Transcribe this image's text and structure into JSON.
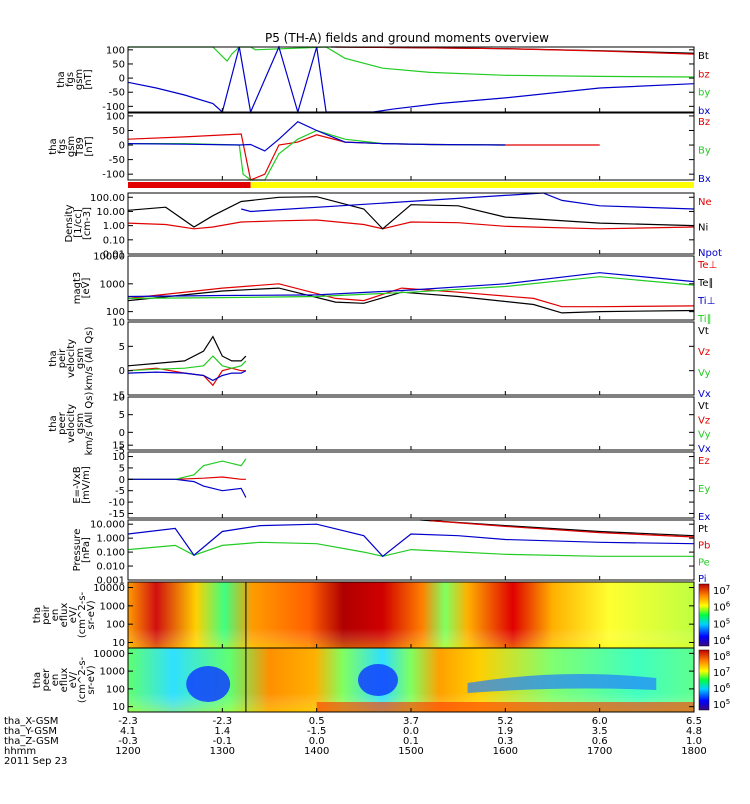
{
  "title": "P5 (TH-A) fields and ground moments overview",
  "colors": {
    "black": "#000000",
    "red": "#e00000",
    "green": "#22cc22",
    "blue": "#0000cc",
    "yellow": "#ffff00"
  },
  "chart_data": [
    {
      "type": "line",
      "ylabel": [
        "tha",
        "fgs",
        "gsm",
        "[nT]"
      ],
      "ylim": [
        -120,
        110
      ],
      "yticks": [
        "100",
        "50",
        "0",
        "-50",
        "-100"
      ],
      "ytick_values": [
        100,
        50,
        0,
        -50,
        -100
      ],
      "series": [
        {
          "name": "Bt",
          "color": "#000000",
          "x": [
            1415,
            1500,
            1600,
            1700,
            1800
          ],
          "y": [
            110,
            108,
            104,
            97,
            88
          ]
        },
        {
          "name": "bz",
          "color": "#e00000",
          "x": [
            1420,
            1500,
            1600,
            1700,
            1800
          ],
          "y": [
            110,
            108,
            104,
            96,
            85
          ]
        },
        {
          "name": "by",
          "color": "#22cc22",
          "x": [
            1200,
            1290,
            1305,
            1310,
            1318,
            1330,
            1335,
            1410,
            1430,
            1470,
            1520,
            1600,
            1700,
            1800
          ],
          "y": [
            110,
            110,
            60,
            85,
            110,
            110,
            100,
            110,
            70,
            35,
            20,
            10,
            6,
            4
          ]
        },
        {
          "name": "bx",
          "color": "#0000cc",
          "x": [
            1200,
            1230,
            1260,
            1290,
            1300,
            1318,
            1330,
            1360,
            1380,
            1400,
            1410,
            1430,
            1460,
            1480,
            1530,
            1600,
            1700,
            1800
          ],
          "y": [
            -15,
            -35,
            -60,
            -90,
            -120,
            110,
            -120,
            110,
            -120,
            110,
            -120,
            -120,
            -120,
            -110,
            -90,
            -70,
            -35,
            -20
          ]
        }
      ]
    },
    {
      "type": "line",
      "ylabel": [
        "tha",
        "fgs",
        "gsm",
        "T89",
        "[nT]"
      ],
      "ylim": [
        -120,
        110
      ],
      "yticks": [
        "100",
        "50",
        "0",
        "-50",
        "-100"
      ],
      "ytick_values": [
        100,
        50,
        0,
        -50,
        -100
      ],
      "series": [
        {
          "name": "Bz",
          "color": "#e00000",
          "x": [
            1200,
            1260,
            1320,
            1330,
            1345,
            1360,
            1380,
            1400,
            1430,
            1470,
            1520,
            1600,
            1700
          ],
          "y": [
            20,
            28,
            38,
            -120,
            -100,
            0,
            10,
            35,
            10,
            5,
            2,
            0,
            0
          ]
        },
        {
          "name": "By",
          "color": "#22cc22",
          "x": [
            1200,
            1260,
            1318,
            1322,
            1330,
            1345,
            1360,
            1380,
            1400,
            1430,
            1470,
            1520,
            1600
          ],
          "y": [
            5,
            5,
            0,
            -100,
            -120,
            -120,
            -30,
            20,
            50,
            20,
            5,
            2,
            0
          ]
        },
        {
          "name": "Bx",
          "color": "#0000cc",
          "x": [
            1200,
            1260,
            1318,
            1330,
            1345,
            1360,
            1380,
            1400,
            1430,
            1470,
            1520,
            1600
          ],
          "y": [
            5,
            3,
            0,
            2,
            -20,
            20,
            80,
            50,
            10,
            5,
            2,
            0
          ]
        }
      ]
    },
    {
      "type": "line",
      "ylabel": [
        "Density",
        "[1/cc]",
        "[cm-3]"
      ],
      "yscale": "log",
      "ylim": [
        0.01,
        200
      ],
      "yticks": [
        "100.00",
        "10.00",
        "1.00",
        "0.10",
        "0.01"
      ],
      "ytick_values": [
        100,
        10,
        1,
        0.1,
        0.01
      ],
      "series": [
        {
          "name": "Ne",
          "color": "#e00000",
          "x": [
            1200,
            1240,
            1270,
            1290,
            1320,
            1360,
            1400,
            1450,
            1470,
            1500,
            1550,
            1600,
            1700,
            1800
          ],
          "y": [
            1.5,
            1.2,
            0.6,
            0.8,
            1.8,
            2.2,
            2.5,
            1.2,
            0.6,
            1.8,
            1.6,
            0.9,
            0.6,
            0.8
          ]
        },
        {
          "name": "Ni",
          "color": "#000000",
          "x": [
            1200,
            1240,
            1270,
            1290,
            1320,
            1360,
            1400,
            1450,
            1470,
            1500,
            1550,
            1600,
            1700,
            1800
          ],
          "y": [
            12,
            20,
            0.8,
            5,
            50,
            100,
            110,
            15,
            0.6,
            30,
            25,
            4,
            1.5,
            1.0
          ]
        },
        {
          "name": "Npot",
          "color": "#0000cc",
          "x": [
            1320,
            1330,
            1640,
            1660,
            1700,
            1800
          ],
          "y": [
            15,
            10,
            200,
            60,
            25,
            15
          ]
        }
      ]
    },
    {
      "type": "line",
      "ylabel": [
        "magt3",
        "[eV]"
      ],
      "yscale": "log",
      "ylim": [
        50,
        10000
      ],
      "yticks": [
        "10000",
        "1000",
        "100"
      ],
      "ytick_values": [
        10000,
        1000,
        100
      ],
      "series": [
        {
          "name": "Te⊥",
          "color": "#e00000",
          "x": [
            1200,
            1300,
            1360,
            1420,
            1450,
            1490,
            1550,
            1630,
            1660,
            1700,
            1800
          ],
          "y": [
            300,
            700,
            1000,
            300,
            250,
            700,
            500,
            300,
            150,
            150,
            160
          ]
        },
        {
          "name": "Te∥",
          "color": "#000000",
          "x": [
            1200,
            1300,
            1360,
            1420,
            1450,
            1490,
            1550,
            1630,
            1660,
            1700,
            1800
          ],
          "y": [
            250,
            550,
            700,
            220,
            200,
            500,
            350,
            180,
            90,
            100,
            110
          ]
        },
        {
          "name": "Ti⊥",
          "color": "#0000cc",
          "x": [
            1200,
            1300,
            1400,
            1500,
            1600,
            1700,
            1800
          ],
          "y": [
            350,
            380,
            400,
            600,
            1000,
            2500,
            1200
          ]
        },
        {
          "name": "Ti∥",
          "color": "#22cc22",
          "x": [
            1200,
            1300,
            1400,
            1500,
            1600,
            1700,
            1800
          ],
          "y": [
            300,
            320,
            350,
            500,
            800,
            1800,
            900
          ]
        }
      ]
    },
    {
      "type": "line",
      "ylabel": [
        "tha",
        "peir",
        "velocity",
        "gsm",
        "km/s (All Qs)"
      ],
      "ylim": [
        -5,
        10
      ],
      "yticks": [
        "10",
        "5",
        "0",
        "-5"
      ],
      "ytick_values": [
        10,
        5,
        0,
        -5
      ],
      "series": [
        {
          "name": "Vt",
          "color": "#000000",
          "x": [
            1200,
            1230,
            1260,
            1280,
            1290,
            1300,
            1310,
            1320,
            1325
          ],
          "y": [
            1,
            1.5,
            2,
            4,
            7,
            3,
            2,
            2,
            3
          ]
        },
        {
          "name": "Vz",
          "color": "#e00000",
          "x": [
            1200,
            1230,
            1260,
            1280,
            1290,
            1300,
            1310,
            1320,
            1325
          ],
          "y": [
            0,
            0.5,
            -0.5,
            -1,
            -3,
            0,
            0.5,
            0,
            0
          ]
        },
        {
          "name": "Vy",
          "color": "#22cc22",
          "x": [
            1200,
            1230,
            1260,
            1280,
            1290,
            1300,
            1310,
            1320,
            1325
          ],
          "y": [
            0,
            0.3,
            0.5,
            1,
            3,
            1,
            0.5,
            1,
            2
          ]
        },
        {
          "name": "Vx",
          "color": "#0000cc",
          "x": [
            1200,
            1230,
            1260,
            1280,
            1290,
            1300,
            1310,
            1320,
            1325
          ],
          "y": [
            -0.5,
            -0.3,
            -0.5,
            -1,
            -2,
            -1,
            -0.5,
            -0.5,
            0
          ]
        }
      ]
    },
    {
      "type": "line",
      "ylabel": [
        "tha",
        "peer",
        "velocity",
        "gsm",
        "km/s (All Qs)"
      ],
      "ylim": [
        -5,
        10
      ],
      "yticks": [
        "10",
        "5",
        "0",
        "-5"
      ],
      "ytick_values": [
        10,
        5,
        0,
        -5
      ],
      "series": [
        {
          "name": "Vt",
          "color": "#000000",
          "x": [],
          "y": []
        },
        {
          "name": "Vz",
          "color": "#e00000",
          "x": [],
          "y": []
        },
        {
          "name": "Vy",
          "color": "#22cc22",
          "x": [],
          "y": []
        },
        {
          "name": "Vx",
          "color": "#0000cc",
          "x": [],
          "y": []
        }
      ]
    },
    {
      "type": "line",
      "ylabel": [
        "E=-VxB",
        "[mV/m]"
      ],
      "ylim": [
        -17,
        12
      ],
      "yticks": [
        "15",
        "10",
        "5",
        "0",
        "-5",
        "-10",
        "-15"
      ],
      "ytick_values": [
        15,
        10,
        5,
        0,
        -5,
        -10,
        -15
      ],
      "series": [
        {
          "name": "Ez",
          "color": "#e00000",
          "x": [
            1200,
            1250,
            1280,
            1300,
            1320,
            1325
          ],
          "y": [
            0,
            0,
            0.5,
            1,
            0,
            0
          ]
        },
        {
          "name": "Ey",
          "color": "#22cc22",
          "x": [
            1200,
            1250,
            1270,
            1280,
            1300,
            1320,
            1325
          ],
          "y": [
            0,
            0,
            2,
            6,
            8,
            6,
            9
          ]
        },
        {
          "name": "Ex",
          "color": "#0000cc",
          "x": [
            1200,
            1250,
            1270,
            1280,
            1300,
            1320,
            1325
          ],
          "y": [
            0,
            0,
            -1,
            -3,
            -5,
            -4,
            -8
          ]
        }
      ]
    },
    {
      "type": "line",
      "ylabel": [
        "Pressure",
        "[nPa]"
      ],
      "yscale": "log",
      "ylim": [
        0.001,
        20
      ],
      "yticks": [
        "10.000",
        "1.000",
        "0.100",
        "0.010",
        "0.001"
      ],
      "ytick_values": [
        10,
        1,
        0.1,
        0.01,
        0.001
      ],
      "series": [
        {
          "name": "Pt",
          "color": "#000000",
          "x": [
            1510,
            1600,
            1700,
            1800
          ],
          "y": [
            20,
            8,
            3,
            1.5
          ]
        },
        {
          "name": "Pb",
          "color": "#e00000",
          "x": [
            1520,
            1600,
            1700,
            1800
          ],
          "y": [
            18,
            7,
            2.5,
            1.2
          ]
        },
        {
          "name": "Pe",
          "color": "#22cc22",
          "x": [
            1200,
            1250,
            1270,
            1300,
            1340,
            1400,
            1450,
            1470,
            1500,
            1600,
            1700,
            1800
          ],
          "y": [
            0.15,
            0.3,
            0.06,
            0.3,
            0.5,
            0.4,
            0.1,
            0.05,
            0.15,
            0.07,
            0.05,
            0.05
          ]
        },
        {
          "name": "Pi",
          "color": "#0000cc",
          "x": [
            1200,
            1250,
            1270,
            1300,
            1340,
            1400,
            1450,
            1470,
            1500,
            1550,
            1600,
            1700,
            1800
          ],
          "y": [
            2,
            5,
            0.06,
            3,
            8,
            10,
            1.5,
            0.05,
            2,
            1.5,
            0.8,
            0.5,
            0.4
          ]
        }
      ]
    },
    {
      "type": "heatmap",
      "ylabel": [
        "tha",
        "peir",
        "en",
        "eflux",
        "eV/",
        "(cm^2-s-",
        "sr-eV)"
      ],
      "yscale": "log",
      "ylim": [
        5,
        20000
      ],
      "yticks": [
        "10000",
        "1000",
        "100",
        "10"
      ],
      "ytick_values": [
        10000,
        1000,
        100,
        10
      ],
      "colorbar": {
        "ticks": [
          "10",
          "10",
          "10",
          "10"
        ],
        "exponents": [
          "7",
          "6",
          "5",
          "4"
        ]
      }
    },
    {
      "type": "heatmap",
      "ylabel": [
        "tha",
        "peer",
        "en",
        "eflux",
        "eV/",
        "(cm^2-s-",
        "sr-eV)"
      ],
      "yscale": "log",
      "ylim": [
        5,
        20000
      ],
      "yticks": [
        "10000",
        "1000",
        "100",
        "10"
      ],
      "ytick_values": [
        10000,
        1000,
        100,
        10
      ],
      "colorbar": {
        "ticks": [
          "10",
          "10",
          "10",
          "10"
        ],
        "exponents": [
          "8",
          "7",
          "6",
          "5"
        ]
      }
    }
  ],
  "xaxis": {
    "xlim": [
      1200,
      1800
    ],
    "tick_values": [
      1200,
      1300,
      1400,
      1500,
      1600,
      1700,
      1800
    ],
    "rows": [
      {
        "label": "tha_X-GSM",
        "values": [
          "-2.3",
          "-2.3",
          "0.5",
          "3.7",
          "5.2",
          "6.0",
          "6.5"
        ]
      },
      {
        "label": "tha_Y-GSM",
        "values": [
          "4.1",
          "1.4",
          "-1.5",
          "0.0",
          "1.9",
          "3.5",
          "4.8"
        ]
      },
      {
        "label": "tha_Z-GSM",
        "values": [
          "-0.3",
          "-0.1",
          "0.0",
          "0.1",
          "0.3",
          "0.6",
          "1.0"
        ]
      },
      {
        "label": "hhmm",
        "values": [
          "1200",
          "1300",
          "1400",
          "1500",
          "1600",
          "1700",
          "1800"
        ]
      }
    ],
    "date": "2011 Sep 23"
  }
}
